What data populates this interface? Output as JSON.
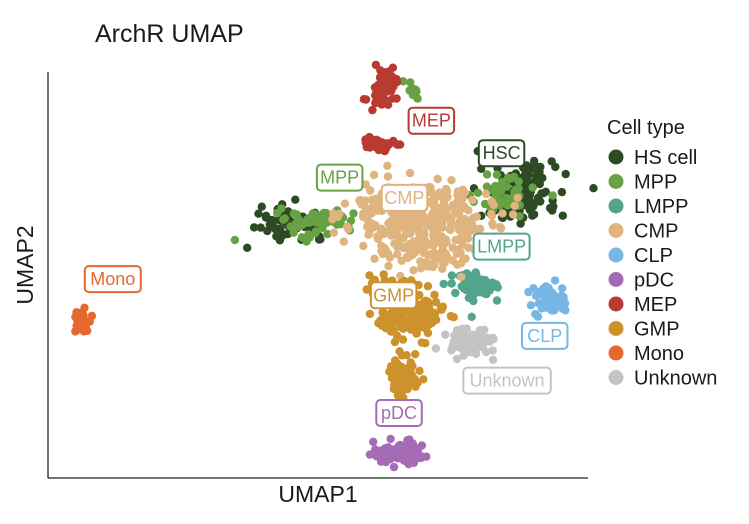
{
  "chart_data": {
    "type": "scatter",
    "title": "ArchR UMAP",
    "xlabel": "UMAP1",
    "ylabel": "UMAP2",
    "xlim": [
      0,
      100
    ],
    "ylim": [
      0,
      100
    ],
    "legend": {
      "title": "Cell type",
      "position": "right"
    },
    "series": [
      {
        "name": "HS cell",
        "color": "#2e4a25",
        "clusters": [
          {
            "cx": 87,
            "cy": 70,
            "rx": 6,
            "ry": 6,
            "n": 160
          },
          {
            "cx": 45,
            "cy": 63,
            "rx": 5,
            "ry": 3,
            "n": 70
          }
        ]
      },
      {
        "name": "MPP",
        "color": "#66a144",
        "clusters": [
          {
            "cx": 50,
            "cy": 63,
            "rx": 6,
            "ry": 3,
            "n": 60
          },
          {
            "cx": 84,
            "cy": 70,
            "rx": 5,
            "ry": 4,
            "n": 50
          },
          {
            "cx": 68,
            "cy": 95,
            "rx": 2,
            "ry": 2,
            "n": 8
          }
        ]
      },
      {
        "name": "LMPP",
        "color": "#52a48d",
        "clusters": [
          {
            "cx": 79,
            "cy": 47,
            "rx": 4,
            "ry": 3,
            "n": 70
          }
        ]
      },
      {
        "name": "CMP",
        "color": "#e0b47e",
        "clusters": [
          {
            "cx": 69,
            "cy": 65,
            "rx": 11,
            "ry": 7,
            "n": 300
          },
          {
            "cx": 70,
            "cy": 56,
            "rx": 7,
            "ry": 4,
            "n": 90
          }
        ]
      },
      {
        "name": "CLP",
        "color": "#76b7e6",
        "clusters": [
          {
            "cx": 93,
            "cy": 44,
            "rx": 3,
            "ry": 3,
            "n": 60
          }
        ]
      },
      {
        "name": "pDC",
        "color": "#a56bb5",
        "clusters": [
          {
            "cx": 65,
            "cy": 6,
            "rx": 4,
            "ry": 2,
            "n": 110
          }
        ]
      },
      {
        "name": "MEP",
        "color": "#b83a31",
        "clusters": [
          {
            "cx": 62,
            "cy": 96,
            "rx": 2,
            "ry": 4,
            "n": 60
          },
          {
            "cx": 62,
            "cy": 82,
            "rx": 3,
            "ry": 1.5,
            "n": 30
          }
        ]
      },
      {
        "name": "GMP",
        "color": "#cd922c",
        "clusters": [
          {
            "cx": 67,
            "cy": 40,
            "rx": 5,
            "ry": 5,
            "n": 140
          },
          {
            "cx": 66,
            "cy": 25,
            "rx": 2,
            "ry": 4,
            "n": 60
          },
          {
            "cx": 64,
            "cy": 47,
            "rx": 4,
            "ry": 3,
            "n": 40
          }
        ]
      },
      {
        "name": "Mono",
        "color": "#e5682c",
        "clusters": [
          {
            "cx": 6,
            "cy": 39,
            "rx": 1.5,
            "ry": 2.5,
            "n": 40
          }
        ]
      },
      {
        "name": "Unknown",
        "color": "#c4c4c4",
        "clusters": [
          {
            "cx": 78,
            "cy": 33,
            "rx": 4,
            "ry": 3,
            "n": 70
          }
        ]
      }
    ],
    "annotations": [
      {
        "text": "MEP",
        "x": 71,
        "y": 88,
        "color": "#b83a31"
      },
      {
        "text": "HSC",
        "x": 84,
        "y": 80,
        "color": "#2e4a25"
      },
      {
        "text": "MPP",
        "x": 54,
        "y": 74,
        "color": "#66a144"
      },
      {
        "text": "CMP",
        "x": 66,
        "y": 69,
        "color": "#e0b47e"
      },
      {
        "text": "LMPP",
        "x": 84,
        "y": 57,
        "color": "#52a48d"
      },
      {
        "text": "Mono",
        "x": 12,
        "y": 49,
        "color": "#e5682c"
      },
      {
        "text": "GMP",
        "x": 64,
        "y": 45,
        "color": "#cd922c"
      },
      {
        "text": "CLP",
        "x": 92,
        "y": 35,
        "color": "#76b7e6"
      },
      {
        "text": "Unknown",
        "x": 85,
        "y": 24,
        "color": "#c4c4c4"
      },
      {
        "text": "pDC",
        "x": 65,
        "y": 16,
        "color": "#a56bb5"
      }
    ],
    "grid": false
  }
}
